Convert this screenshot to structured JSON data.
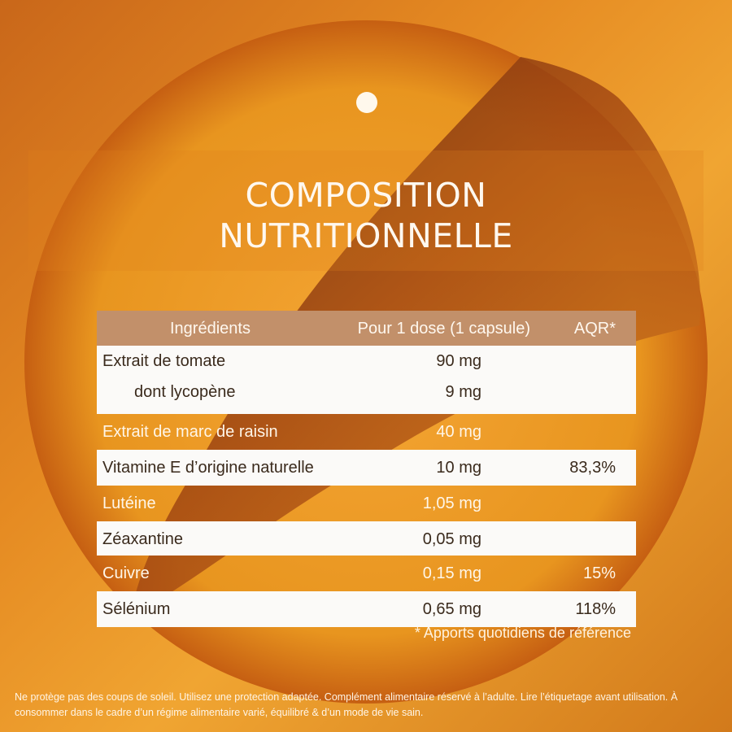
{
  "title_line1": "COMPOSITION",
  "title_line2": "NUTRITIONNELLE",
  "table": {
    "headers": {
      "ingredient": "Ingrédients",
      "dose": "Pour 1 dose (1 capsule)",
      "aqr": "AQR*"
    },
    "rows": [
      {
        "name": "Extrait de tomate",
        "dose": "90 mg",
        "aqr": "",
        "sub_name": "dont lycopène",
        "sub_dose": "9 mg"
      },
      {
        "name": "Extrait de marc de raisin",
        "dose": "40 mg",
        "aqr": ""
      },
      {
        "name": "Vitamine E d’origine naturelle",
        "dose": "10 mg",
        "aqr": "83,3%"
      },
      {
        "name": "Lutéine",
        "dose": "1,05 mg",
        "aqr": ""
      },
      {
        "name": "Zéaxantine",
        "dose": "0,05 mg",
        "aqr": ""
      },
      {
        "name": "Cuivre",
        "dose": "0,15 mg",
        "aqr": "15%"
      },
      {
        "name": "Sélénium",
        "dose": "0,65 mg",
        "aqr": "118%"
      }
    ]
  },
  "footnote": "* Apports quotidiens de référence",
  "disclaimer": "Ne protège pas des coups de soleil. Utilisez une protection adaptée. Complément alimentaire réservé à l’adulte. Lire l’étiquetage avant utilisation. À consommer dans le cadre d’un régime alimentaire varié, équilibré & d’un mode de vie sain."
}
